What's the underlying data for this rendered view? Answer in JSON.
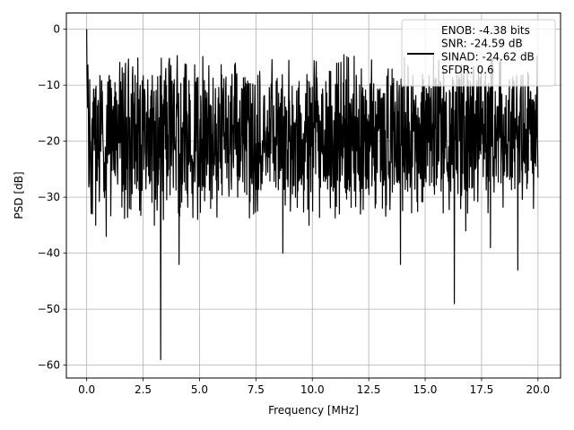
{
  "chart_data": {
    "type": "line",
    "title": "",
    "xlabel": "Frequency [MHz]",
    "ylabel": "PSD [dB]",
    "xlim": [
      -0.9,
      21.0
    ],
    "ylim": [
      -62.3,
      2.9
    ],
    "x_ticks": [
      0.0,
      2.5,
      5.0,
      7.5,
      10.0,
      12.5,
      15.0,
      17.5,
      20.0
    ],
    "x_tick_labels": [
      "0.0",
      "2.5",
      "5.0",
      "7.5",
      "10.0",
      "12.5",
      "15.0",
      "17.5",
      "20.0"
    ],
    "y_ticks": [
      0,
      -10,
      -20,
      -30,
      -40,
      -50,
      -60
    ],
    "y_tick_labels": [
      "0",
      "−10",
      "−20",
      "−30",
      "−40",
      "−50",
      "−60"
    ],
    "grid": true,
    "legend_position": "top-right",
    "series": [
      {
        "name": "ENOB: -4.38 bits\nSNR: -24.59 dB\nSINAD: -24.62 dB\nSFDR: 0.6",
        "color": "#000000",
        "x_range": [
          0.0,
          20.0
        ],
        "peak": {
          "x": 0.0,
          "y": 0.0
        },
        "noise_band": {
          "typical_top": -8,
          "typical_bottom": -29,
          "max_top": -4.5
        },
        "deep_dips": [
          {
            "x": 0.25,
            "y": -33
          },
          {
            "x": 0.4,
            "y": -35
          },
          {
            "x": 0.87,
            "y": -37
          },
          {
            "x": 1.9,
            "y": -32
          },
          {
            "x": 3.0,
            "y": -35
          },
          {
            "x": 3.28,
            "y": -59
          },
          {
            "x": 3.4,
            "y": -34
          },
          {
            "x": 4.1,
            "y": -42
          },
          {
            "x": 5.5,
            "y": -32
          },
          {
            "x": 7.4,
            "y": -33
          },
          {
            "x": 8.7,
            "y": -40
          },
          {
            "x": 9.85,
            "y": -35
          },
          {
            "x": 11.2,
            "y": -33
          },
          {
            "x": 13.9,
            "y": -42
          },
          {
            "x": 16.3,
            "y": -49
          },
          {
            "x": 16.8,
            "y": -36
          },
          {
            "x": 17.9,
            "y": -39
          },
          {
            "x": 19.1,
            "y": -43
          },
          {
            "x": 19.8,
            "y": -32
          }
        ]
      }
    ]
  }
}
